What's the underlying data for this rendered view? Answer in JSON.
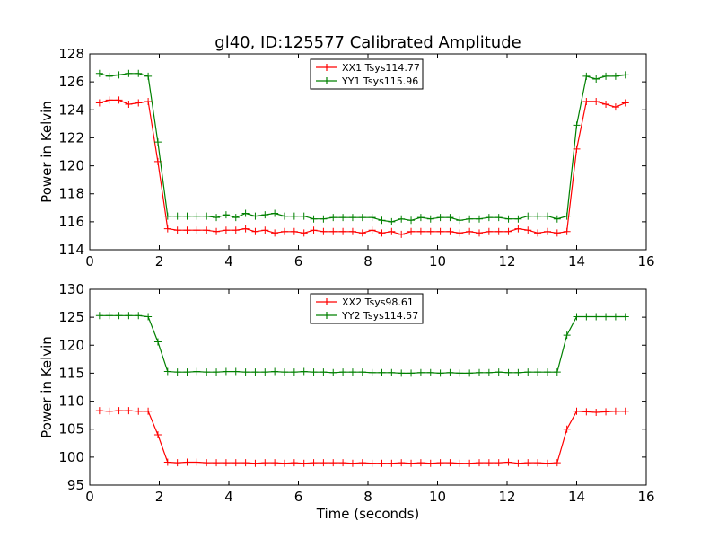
{
  "title": "gl40, ID:125577 Calibrated Amplitude",
  "chart_data": [
    {
      "type": "line",
      "ylabel": "Power in Kelvin",
      "xlabel": "",
      "xlim": [
        0,
        16
      ],
      "ylim": [
        114,
        128
      ],
      "xticks": [
        0,
        2,
        4,
        6,
        8,
        10,
        12,
        14,
        16
      ],
      "yticks": [
        114,
        116,
        118,
        120,
        122,
        124,
        126,
        128
      ],
      "legend_position": "top-center",
      "x": [
        0.28,
        0.56,
        0.84,
        1.12,
        1.4,
        1.68,
        1.96,
        2.24,
        2.52,
        2.8,
        3.08,
        3.36,
        3.64,
        3.92,
        4.2,
        4.48,
        4.76,
        5.04,
        5.32,
        5.6,
        5.88,
        6.16,
        6.44,
        6.72,
        7.0,
        7.28,
        7.56,
        7.84,
        8.12,
        8.4,
        8.68,
        8.96,
        9.24,
        9.52,
        9.8,
        10.08,
        10.36,
        10.64,
        10.92,
        11.2,
        11.48,
        11.76,
        12.04,
        12.32,
        12.6,
        12.88,
        13.16,
        13.44,
        13.72,
        14.0,
        14.28,
        14.56,
        14.84,
        15.12,
        15.4
      ],
      "series": [
        {
          "name": "XX1 Tsys114.77",
          "color": "#ff0000",
          "values": [
            124.5,
            124.7,
            124.7,
            124.4,
            124.5,
            124.6,
            120.3,
            115.5,
            115.4,
            115.4,
            115.4,
            115.4,
            115.3,
            115.4,
            115.4,
            115.5,
            115.3,
            115.4,
            115.2,
            115.3,
            115.3,
            115.2,
            115.4,
            115.3,
            115.3,
            115.3,
            115.3,
            115.2,
            115.4,
            115.2,
            115.3,
            115.1,
            115.3,
            115.3,
            115.3,
            115.3,
            115.3,
            115.2,
            115.3,
            115.2,
            115.3,
            115.3,
            115.3,
            115.5,
            115.4,
            115.2,
            115.3,
            115.2,
            115.3,
            121.2,
            124.6,
            124.6,
            124.4,
            124.2,
            124.5
          ]
        },
        {
          "name": "YY1 Tsys115.96",
          "color": "#008000",
          "values": [
            126.6,
            126.4,
            126.5,
            126.6,
            126.6,
            126.4,
            121.7,
            116.4,
            116.4,
            116.4,
            116.4,
            116.4,
            116.3,
            116.5,
            116.3,
            116.6,
            116.4,
            116.5,
            116.6,
            116.4,
            116.4,
            116.4,
            116.2,
            116.2,
            116.3,
            116.3,
            116.3,
            116.3,
            116.3,
            116.1,
            116.0,
            116.2,
            116.1,
            116.3,
            116.2,
            116.3,
            116.3,
            116.1,
            116.2,
            116.2,
            116.3,
            116.3,
            116.2,
            116.2,
            116.4,
            116.4,
            116.4,
            116.2,
            116.4,
            122.9,
            126.4,
            126.2,
            126.4,
            126.4,
            126.5
          ]
        }
      ]
    },
    {
      "type": "line",
      "ylabel": "Power in Kelvin",
      "xlabel": "Time (seconds)",
      "xlim": [
        0,
        16
      ],
      "ylim": [
        95,
        130
      ],
      "xticks": [
        0,
        2,
        4,
        6,
        8,
        10,
        12,
        14,
        16
      ],
      "yticks": [
        95,
        100,
        105,
        110,
        115,
        120,
        125,
        130
      ],
      "legend_position": "top-center",
      "x": [
        0.28,
        0.56,
        0.84,
        1.12,
        1.4,
        1.68,
        1.96,
        2.24,
        2.52,
        2.8,
        3.08,
        3.36,
        3.64,
        3.92,
        4.2,
        4.48,
        4.76,
        5.04,
        5.32,
        5.6,
        5.88,
        6.16,
        6.44,
        6.72,
        7.0,
        7.28,
        7.56,
        7.84,
        8.12,
        8.4,
        8.68,
        8.96,
        9.24,
        9.52,
        9.8,
        10.08,
        10.36,
        10.64,
        10.92,
        11.2,
        11.48,
        11.76,
        12.04,
        12.32,
        12.6,
        12.88,
        13.16,
        13.44,
        13.72,
        14.0,
        14.28,
        14.56,
        14.84,
        15.12,
        15.4
      ],
      "series": [
        {
          "name": "XX2 Tsys98.61",
          "color": "#ff0000",
          "values": [
            108.3,
            108.2,
            108.3,
            108.3,
            108.2,
            108.2,
            104.0,
            99.1,
            99.0,
            99.1,
            99.1,
            99.0,
            99.0,
            99.0,
            99.0,
            99.0,
            98.9,
            99.0,
            99.0,
            98.9,
            99.0,
            98.9,
            99.0,
            99.0,
            99.0,
            99.0,
            98.9,
            99.0,
            98.9,
            98.9,
            98.9,
            99.0,
            98.9,
            99.0,
            98.9,
            99.0,
            99.0,
            98.9,
            98.9,
            99.0,
            99.0,
            99.0,
            99.1,
            98.9,
            99.0,
            99.0,
            98.9,
            99.0,
            105.0,
            108.2,
            108.1,
            108.0,
            108.1,
            108.2,
            108.2
          ]
        },
        {
          "name": "YY2 Tsys114.57",
          "color": "#008000",
          "values": [
            125.3,
            125.3,
            125.3,
            125.3,
            125.3,
            125.1,
            120.6,
            115.3,
            115.2,
            115.2,
            115.3,
            115.2,
            115.2,
            115.3,
            115.3,
            115.2,
            115.2,
            115.2,
            115.3,
            115.2,
            115.2,
            115.3,
            115.2,
            115.2,
            115.1,
            115.2,
            115.2,
            115.2,
            115.1,
            115.1,
            115.1,
            115.0,
            115.0,
            115.1,
            115.1,
            115.0,
            115.1,
            115.0,
            115.0,
            115.1,
            115.1,
            115.2,
            115.1,
            115.1,
            115.2,
            115.2,
            115.2,
            115.2,
            121.8,
            125.1,
            125.1,
            125.1,
            125.1,
            125.1,
            125.1
          ]
        }
      ]
    }
  ]
}
